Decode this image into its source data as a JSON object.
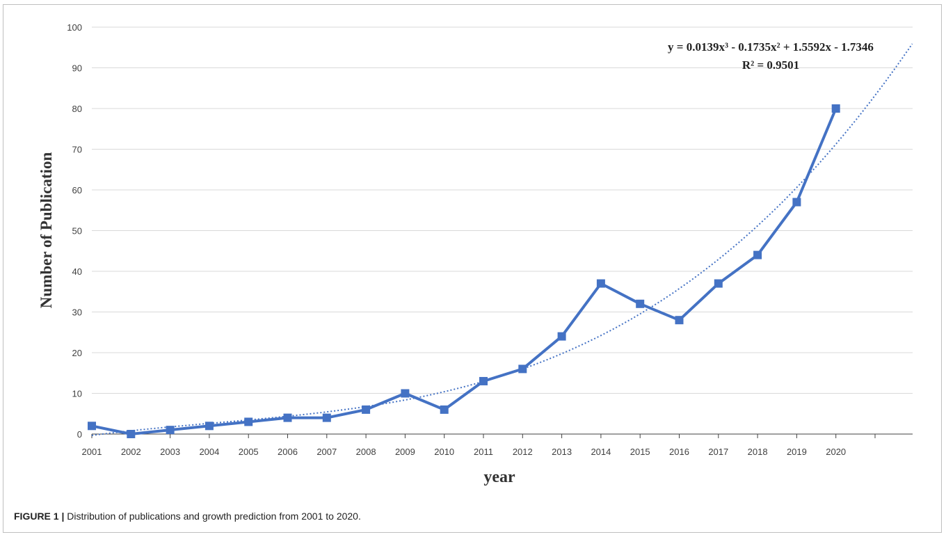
{
  "chart_data": {
    "type": "line",
    "x": [
      "2001",
      "2002",
      "2003",
      "2004",
      "2005",
      "2006",
      "2007",
      "2008",
      "2009",
      "2010",
      "2011",
      "2012",
      "2013",
      "2014",
      "2015",
      "2016",
      "2017",
      "2018",
      "2019",
      "2020"
    ],
    "series": [
      {
        "values": [
          2,
          0,
          1,
          2,
          3,
          4,
          4,
          6,
          10,
          6,
          13,
          16,
          24,
          37,
          32,
          28,
          37,
          44,
          57,
          80
        ],
        "color": "#4472c4",
        "marker": "square"
      }
    ],
    "trendline": {
      "type": "polynomial",
      "order": 3,
      "coefficients": [
        0.0139,
        -0.1735,
        1.5592,
        -1.7346
      ],
      "style": "dotted",
      "color": "#4472c4",
      "equation_label": "y = 0.0139x³ - 0.1735x² + 1.5592x - 1.7346",
      "r2_label": "R² = 0.9501"
    },
    "xlabel": "year",
    "ylabel": "Number of Publication",
    "ylim": [
      0,
      100
    ],
    "yticks": [
      0,
      10,
      20,
      30,
      40,
      50,
      60,
      70,
      80,
      90,
      100
    ],
    "grid": true,
    "legend": "none"
  },
  "caption": {
    "label": "FIGURE 1 |",
    "text": " Distribution of publications and growth prediction from 2001 to 2020."
  }
}
